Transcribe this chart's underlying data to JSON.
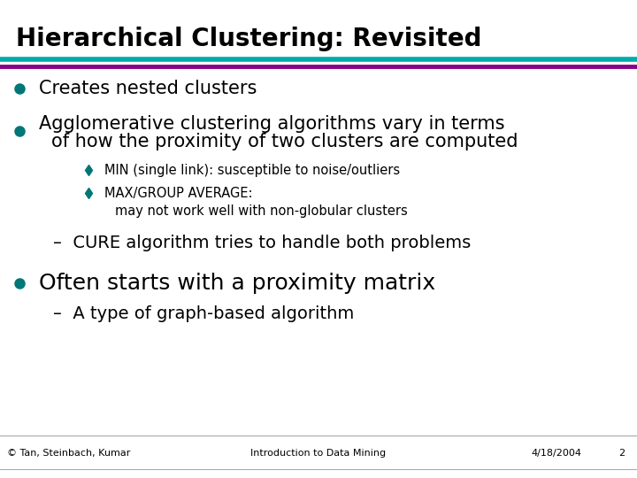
{
  "title": "Hierarchical Clustering: Revisited",
  "title_color": "#000000",
  "title_fontsize": 20,
  "bg_color": "#ffffff",
  "line1_color": "#00AAAA",
  "line2_color": "#880088",
  "bullet_color": "#007777",
  "diamond_color": "#007777",
  "bullet1": "Creates nested clusters",
  "bullet2_line1": "Agglomerative clustering algorithms vary in terms",
  "bullet2_line2": "of how the proximity of two clusters are computed",
  "sub1": "MIN (single link): susceptible to noise/outliers",
  "sub2_line1": "MAX/GROUP AVERAGE:",
  "sub2_line2": "may not work well with non-globular clusters",
  "dash1": "CURE algorithm tries to handle both problems",
  "bullet3": "Often starts with a proximity matrix",
  "dash2": "A type of graph-based algorithm",
  "footer_left": "© Tan, Steinbach, Kumar",
  "footer_center": "Introduction to Data Mining",
  "footer_right": "4/18/2004",
  "footer_page": "2",
  "footer_color": "#000000",
  "footer_fontsize": 8,
  "main_fontsize": 15,
  "sub_fontsize": 10.5,
  "dash_fontsize": 14
}
